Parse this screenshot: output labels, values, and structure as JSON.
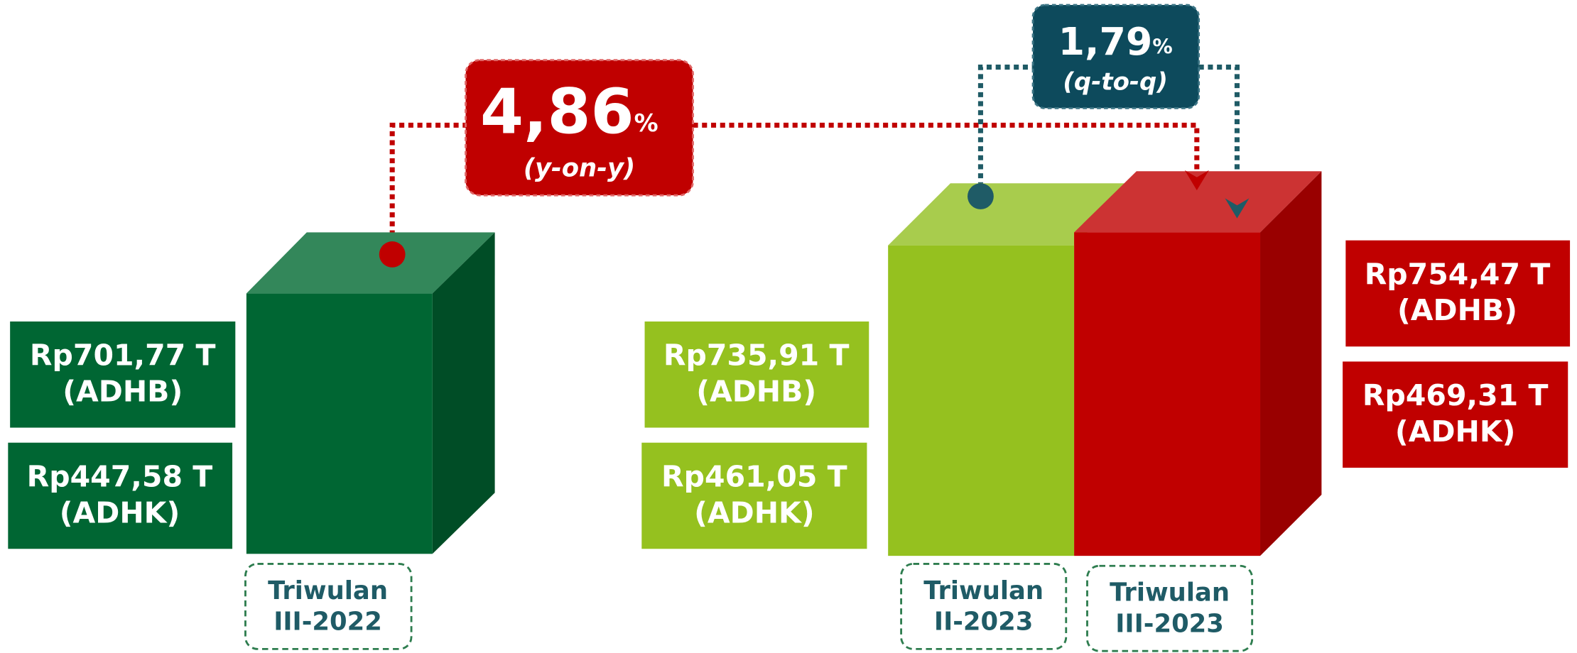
{
  "yoy": {
    "value": "4,86",
    "unit": "%",
    "note": "(y-on-y)"
  },
  "qtq": {
    "value": "1,79",
    "unit": "%",
    "note": "(q-to-q)"
  },
  "periods": [
    {
      "name": [
        "Triwulan",
        "III-2022"
      ],
      "adhb": [
        "Rp701,77 T",
        "(ADHB)"
      ],
      "adhk": [
        "Rp447,58 T",
        "(ADHK)"
      ]
    },
    {
      "name": [
        "Triwulan",
        "II-2023"
      ],
      "adhb": [
        "Rp735,91 T",
        "(ADHB)"
      ],
      "adhk": [
        "Rp461,05 T",
        "(ADHK)"
      ]
    },
    {
      "name": [
        "Triwulan",
        "III-2023"
      ],
      "adhb": [
        "Rp754,47 T",
        "(ADHB)"
      ],
      "adhk": [
        "Rp469,31 T",
        "(ADHK)"
      ]
    }
  ]
}
